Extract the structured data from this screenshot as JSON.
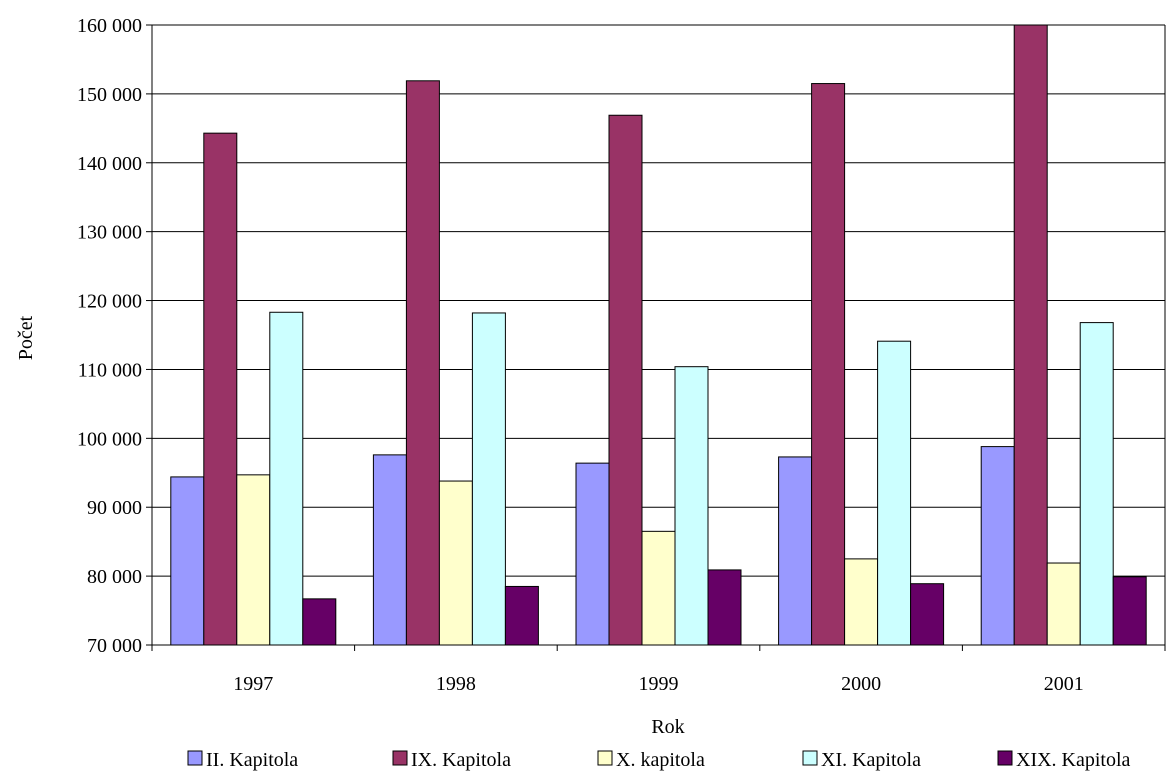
{
  "chart_data": {
    "type": "bar",
    "title": "",
    "xlabel": "Rok",
    "ylabel": "Počet",
    "categories": [
      "1997",
      "1998",
      "1999",
      "2000",
      "2001"
    ],
    "ylim": [
      70000,
      160000
    ],
    "yticks": [
      70000,
      80000,
      90000,
      100000,
      110000,
      120000,
      130000,
      140000,
      150000,
      160000
    ],
    "ytick_labels": [
      "70 000",
      "80 000",
      "90 000",
      "100 000",
      "110 000",
      "120 000",
      "130 000",
      "140 000",
      "150 000",
      "160 000"
    ],
    "grid": "horizontal",
    "legend_position": "bottom",
    "series": [
      {
        "name": "II. Kapitola",
        "color": "#9999ff",
        "values": [
          94400,
          97600,
          96400,
          97300,
          98800
        ]
      },
      {
        "name": "IX. Kapitola",
        "color": "#993366",
        "values": [
          144300,
          151900,
          146900,
          151500,
          160000
        ]
      },
      {
        "name": "X. kapitola",
        "color": "#ffffcc",
        "values": [
          94700,
          93800,
          86500,
          82500,
          81900
        ]
      },
      {
        "name": "XI. Kapitola",
        "color": "#ccffff",
        "values": [
          118300,
          118200,
          110400,
          114100,
          116800
        ]
      },
      {
        "name": "XIX. Kapitola",
        "color": "#660066",
        "values": [
          76700,
          78500,
          80900,
          78900,
          79900
        ]
      }
    ]
  }
}
